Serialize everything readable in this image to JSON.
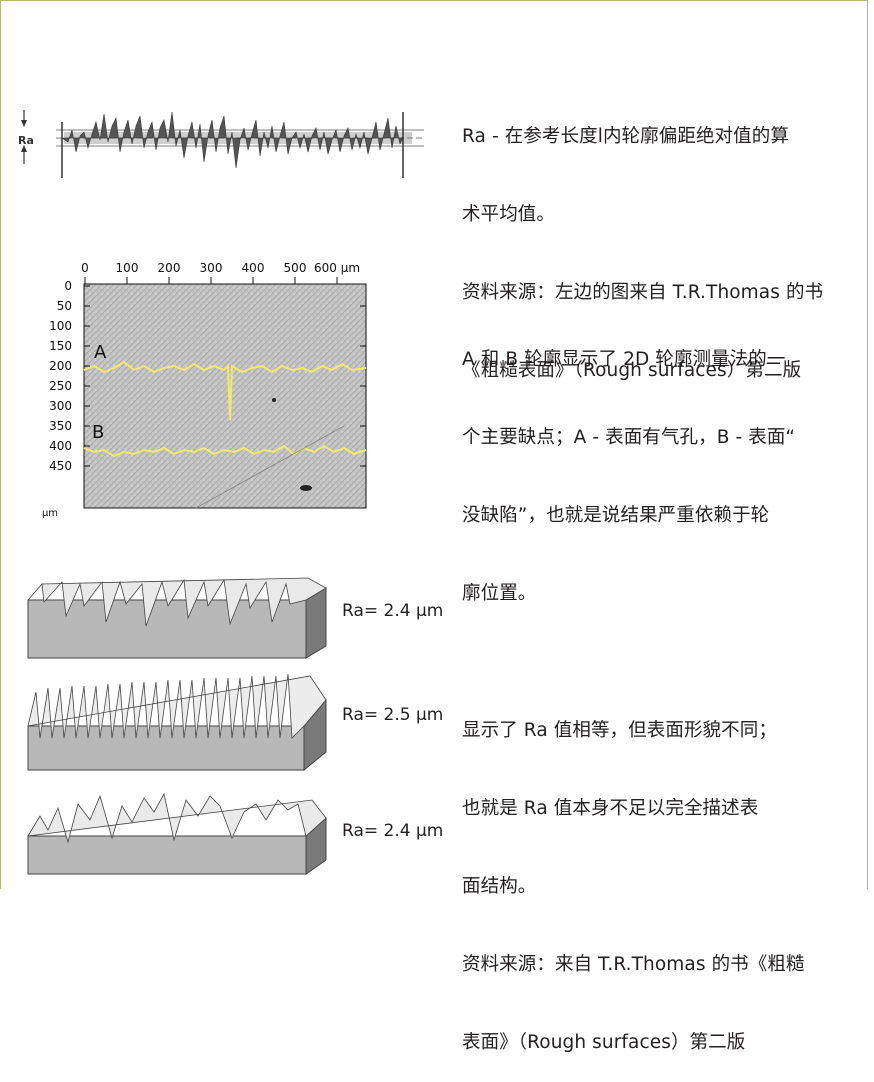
{
  "section1": {
    "lines": [
      "Ra - 在参考长度l内轮廓偏距绝对值的算",
      "术平均值。",
      "资料来源：左边的图来自 T.R.Thomas 的书",
      "《粗糙表面》（Rough surfaces）第二版"
    ],
    "fig_label": "Ra"
  },
  "section2": {
    "lines": [
      "A 和 B 轮廓显示了 2D 轮廓测量法的一",
      "个主要缺点；A - 表面有气孔，B - 表面“",
      "没缺陷”，也就是说结果严重依赖于轮",
      "廓位置。"
    ],
    "x_ticks": [
      "0",
      "100",
      "200",
      "300",
      "400",
      "500",
      "600 µm"
    ],
    "y_ticks": [
      "0",
      "50",
      "100",
      "150",
      "200",
      "250",
      "300",
      "350",
      "400",
      "450",
      "µm"
    ],
    "label_a": "A",
    "label_b": "B",
    "profile_color": "#f2ea6a"
  },
  "section3": {
    "surfaces": [
      {
        "ra": "Ra= 2.4 µm"
      },
      {
        "ra": "Ra= 2.5 µm"
      },
      {
        "ra": "Ra= 2.4 µm"
      }
    ],
    "lines": [
      "显示了 Ra 值相等，但表面形貌不同；",
      "也就是 Ra 值本身不足以完全描述表",
      "面结构。",
      "资料来源：来自 T.R.Thomas 的书《粗糙",
      "表面》（Rough surfaces）第二版"
    ]
  },
  "colors": {
    "border": "#b3b87a",
    "surface_gray": "#8a8a8a"
  }
}
